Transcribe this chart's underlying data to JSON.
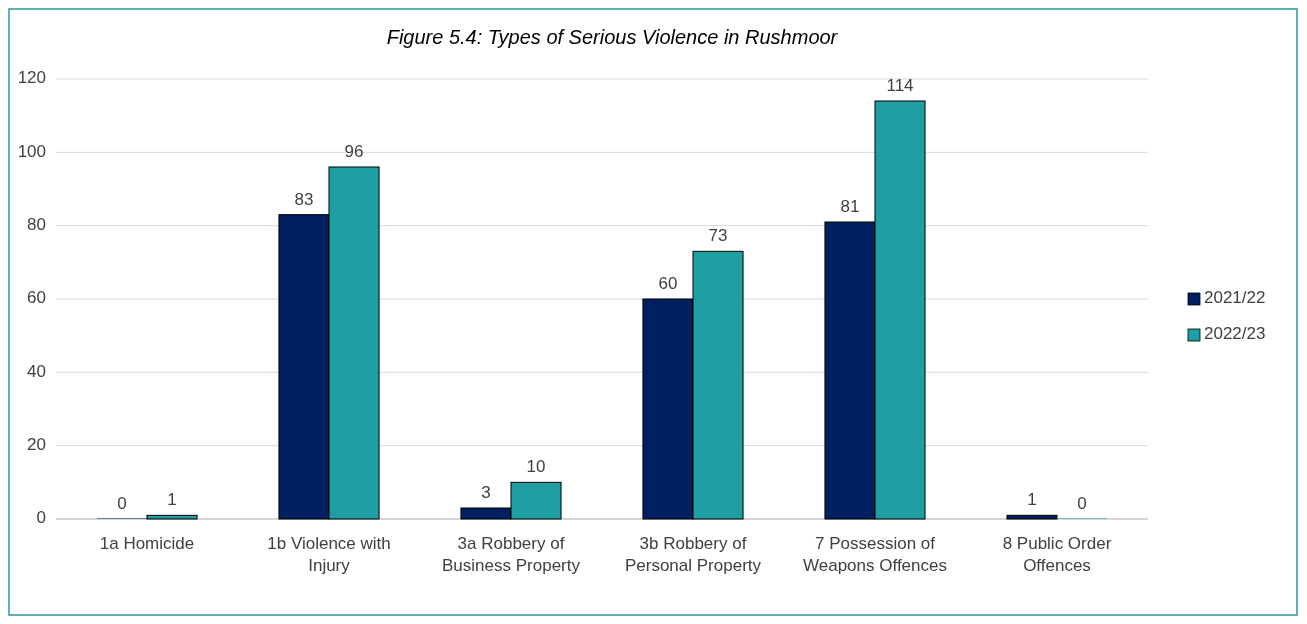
{
  "chart_data": {
    "type": "bar",
    "title": "Figure 5.4: Types of Serious Violence in Rushmoor",
    "categories": [
      "1a Homicide",
      "1b Violence with Injury",
      "3a Robbery of Business Property",
      "3b Robbery of Personal Property",
      "7 Possession of Weapons Offences",
      "8 Public Order Offences"
    ],
    "series": [
      {
        "name": "2021/22",
        "color": "#002060",
        "values": [
          0,
          83,
          3,
          60,
          81,
          1
        ]
      },
      {
        "name": "2022/23",
        "color": "#1f9ea3",
        "values": [
          1,
          96,
          10,
          73,
          114,
          0
        ]
      }
    ],
    "ylim": [
      0,
      120
    ],
    "yticks": [
      0,
      20,
      40,
      60,
      80,
      100,
      120
    ],
    "grid": "y",
    "legend": "right",
    "data_labels": true
  }
}
